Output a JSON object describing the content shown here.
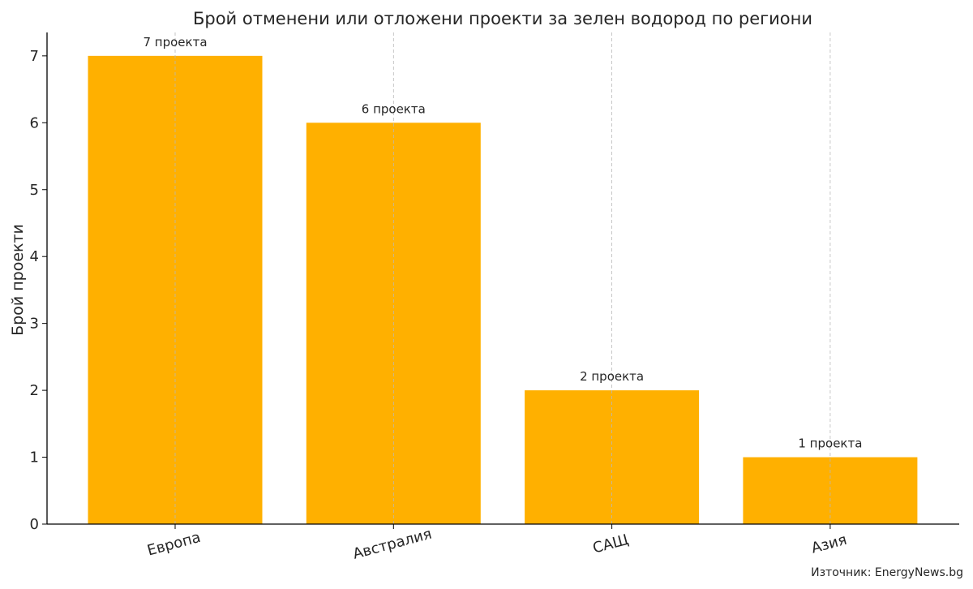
{
  "chart_data": {
    "type": "bar",
    "title": "Брой отменени или отложени проекти за зелен водород по региони",
    "xlabel": "",
    "ylabel": "Брой проекти",
    "categories": [
      "Европа",
      "Австралия",
      "САЩ",
      "Азия"
    ],
    "values": [
      7,
      6,
      2,
      1
    ],
    "data_labels": [
      "7 проекта",
      "6 проекта",
      "2 проекта",
      "1 проекта"
    ],
    "ylim": [
      0,
      7.35
    ],
    "yticks": [
      "0",
      "1",
      "2",
      "3",
      "4",
      "5",
      "6",
      "7"
    ],
    "x_tick_rotation_deg": 15,
    "grid": "vertical dashed",
    "bar_color": "#FFB000",
    "source": "Източник: EnergyNews.bg"
  }
}
